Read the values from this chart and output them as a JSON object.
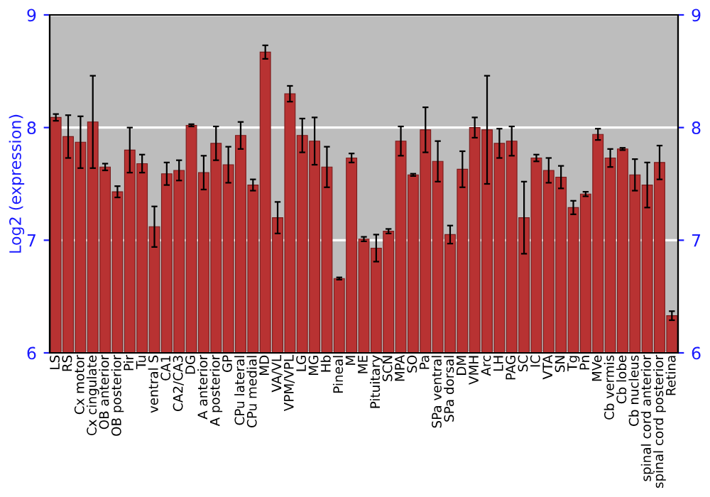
{
  "chart_data": {
    "type": "bar",
    "ylabel": "Log2 (expression)",
    "categories": [
      "LS",
      "RS",
      "Cx motor",
      "Cx cingulate",
      "OB anterior",
      "OB posterior",
      "Pir",
      "Tu",
      "ventral S",
      "CA1",
      "CA2/CA3",
      "DG",
      "A anterior",
      "A posterior",
      "GP",
      "CPu lateral",
      "CPu medial",
      "MD",
      "VA/VL",
      "VPM/VPL",
      "LG",
      "MG",
      "Hb",
      "Pineal",
      "M",
      "ME",
      "Pituitary",
      "SCN",
      "MPA",
      "SO",
      "Pa",
      "SPa ventral",
      "SPa dorsal",
      "DM",
      "VMH",
      "Arc",
      "LH",
      "PAG",
      "SC",
      "IC",
      "VTA",
      "SN",
      "Tg",
      "Pn",
      "MVe",
      "Cb vermis",
      "Cb lobe",
      "Cb nucleus",
      "spinal cord anterior",
      "spinal cord posterior",
      "Retina"
    ],
    "series": [
      {
        "color": "#b83232",
        "values": [
          8.09,
          7.92,
          7.87,
          8.05,
          7.65,
          7.43,
          7.8,
          7.68,
          7.12,
          7.59,
          7.62,
          8.02,
          7.6,
          7.86,
          7.67,
          7.93,
          7.49,
          8.67,
          7.2,
          8.3,
          7.93,
          7.88,
          7.65,
          6.66,
          7.73,
          7.01,
          6.93,
          7.08,
          7.88,
          7.58,
          7.98,
          7.7,
          7.05,
          7.63,
          8.0,
          7.98,
          7.86,
          7.88,
          7.2,
          7.73,
          7.62,
          7.56,
          7.29,
          7.41,
          7.94,
          7.73,
          7.81,
          7.58,
          7.49,
          7.69,
          6.33
        ],
        "errors": [
          0.03,
          0.19,
          0.23,
          0.41,
          0.03,
          0.05,
          0.2,
          0.08,
          0.18,
          0.1,
          0.09,
          0.01,
          0.15,
          0.15,
          0.16,
          0.12,
          0.05,
          0.06,
          0.14,
          0.07,
          0.15,
          0.21,
          0.18,
          0.01,
          0.04,
          0.02,
          0.12,
          0.02,
          0.13,
          0.01,
          0.2,
          0.18,
          0.08,
          0.16,
          0.09,
          0.48,
          0.13,
          0.13,
          0.32,
          0.03,
          0.11,
          0.1,
          0.06,
          0.02,
          0.05,
          0.08,
          0.01,
          0.14,
          0.2,
          0.15,
          0.04
        ]
      }
    ],
    "ylim": [
      6,
      9
    ],
    "yticks": [
      6,
      7,
      8,
      9
    ],
    "y2lim": [
      6,
      9
    ],
    "y2ticks": [
      6,
      7,
      8,
      9
    ],
    "grid": "y",
    "legend": false
  }
}
